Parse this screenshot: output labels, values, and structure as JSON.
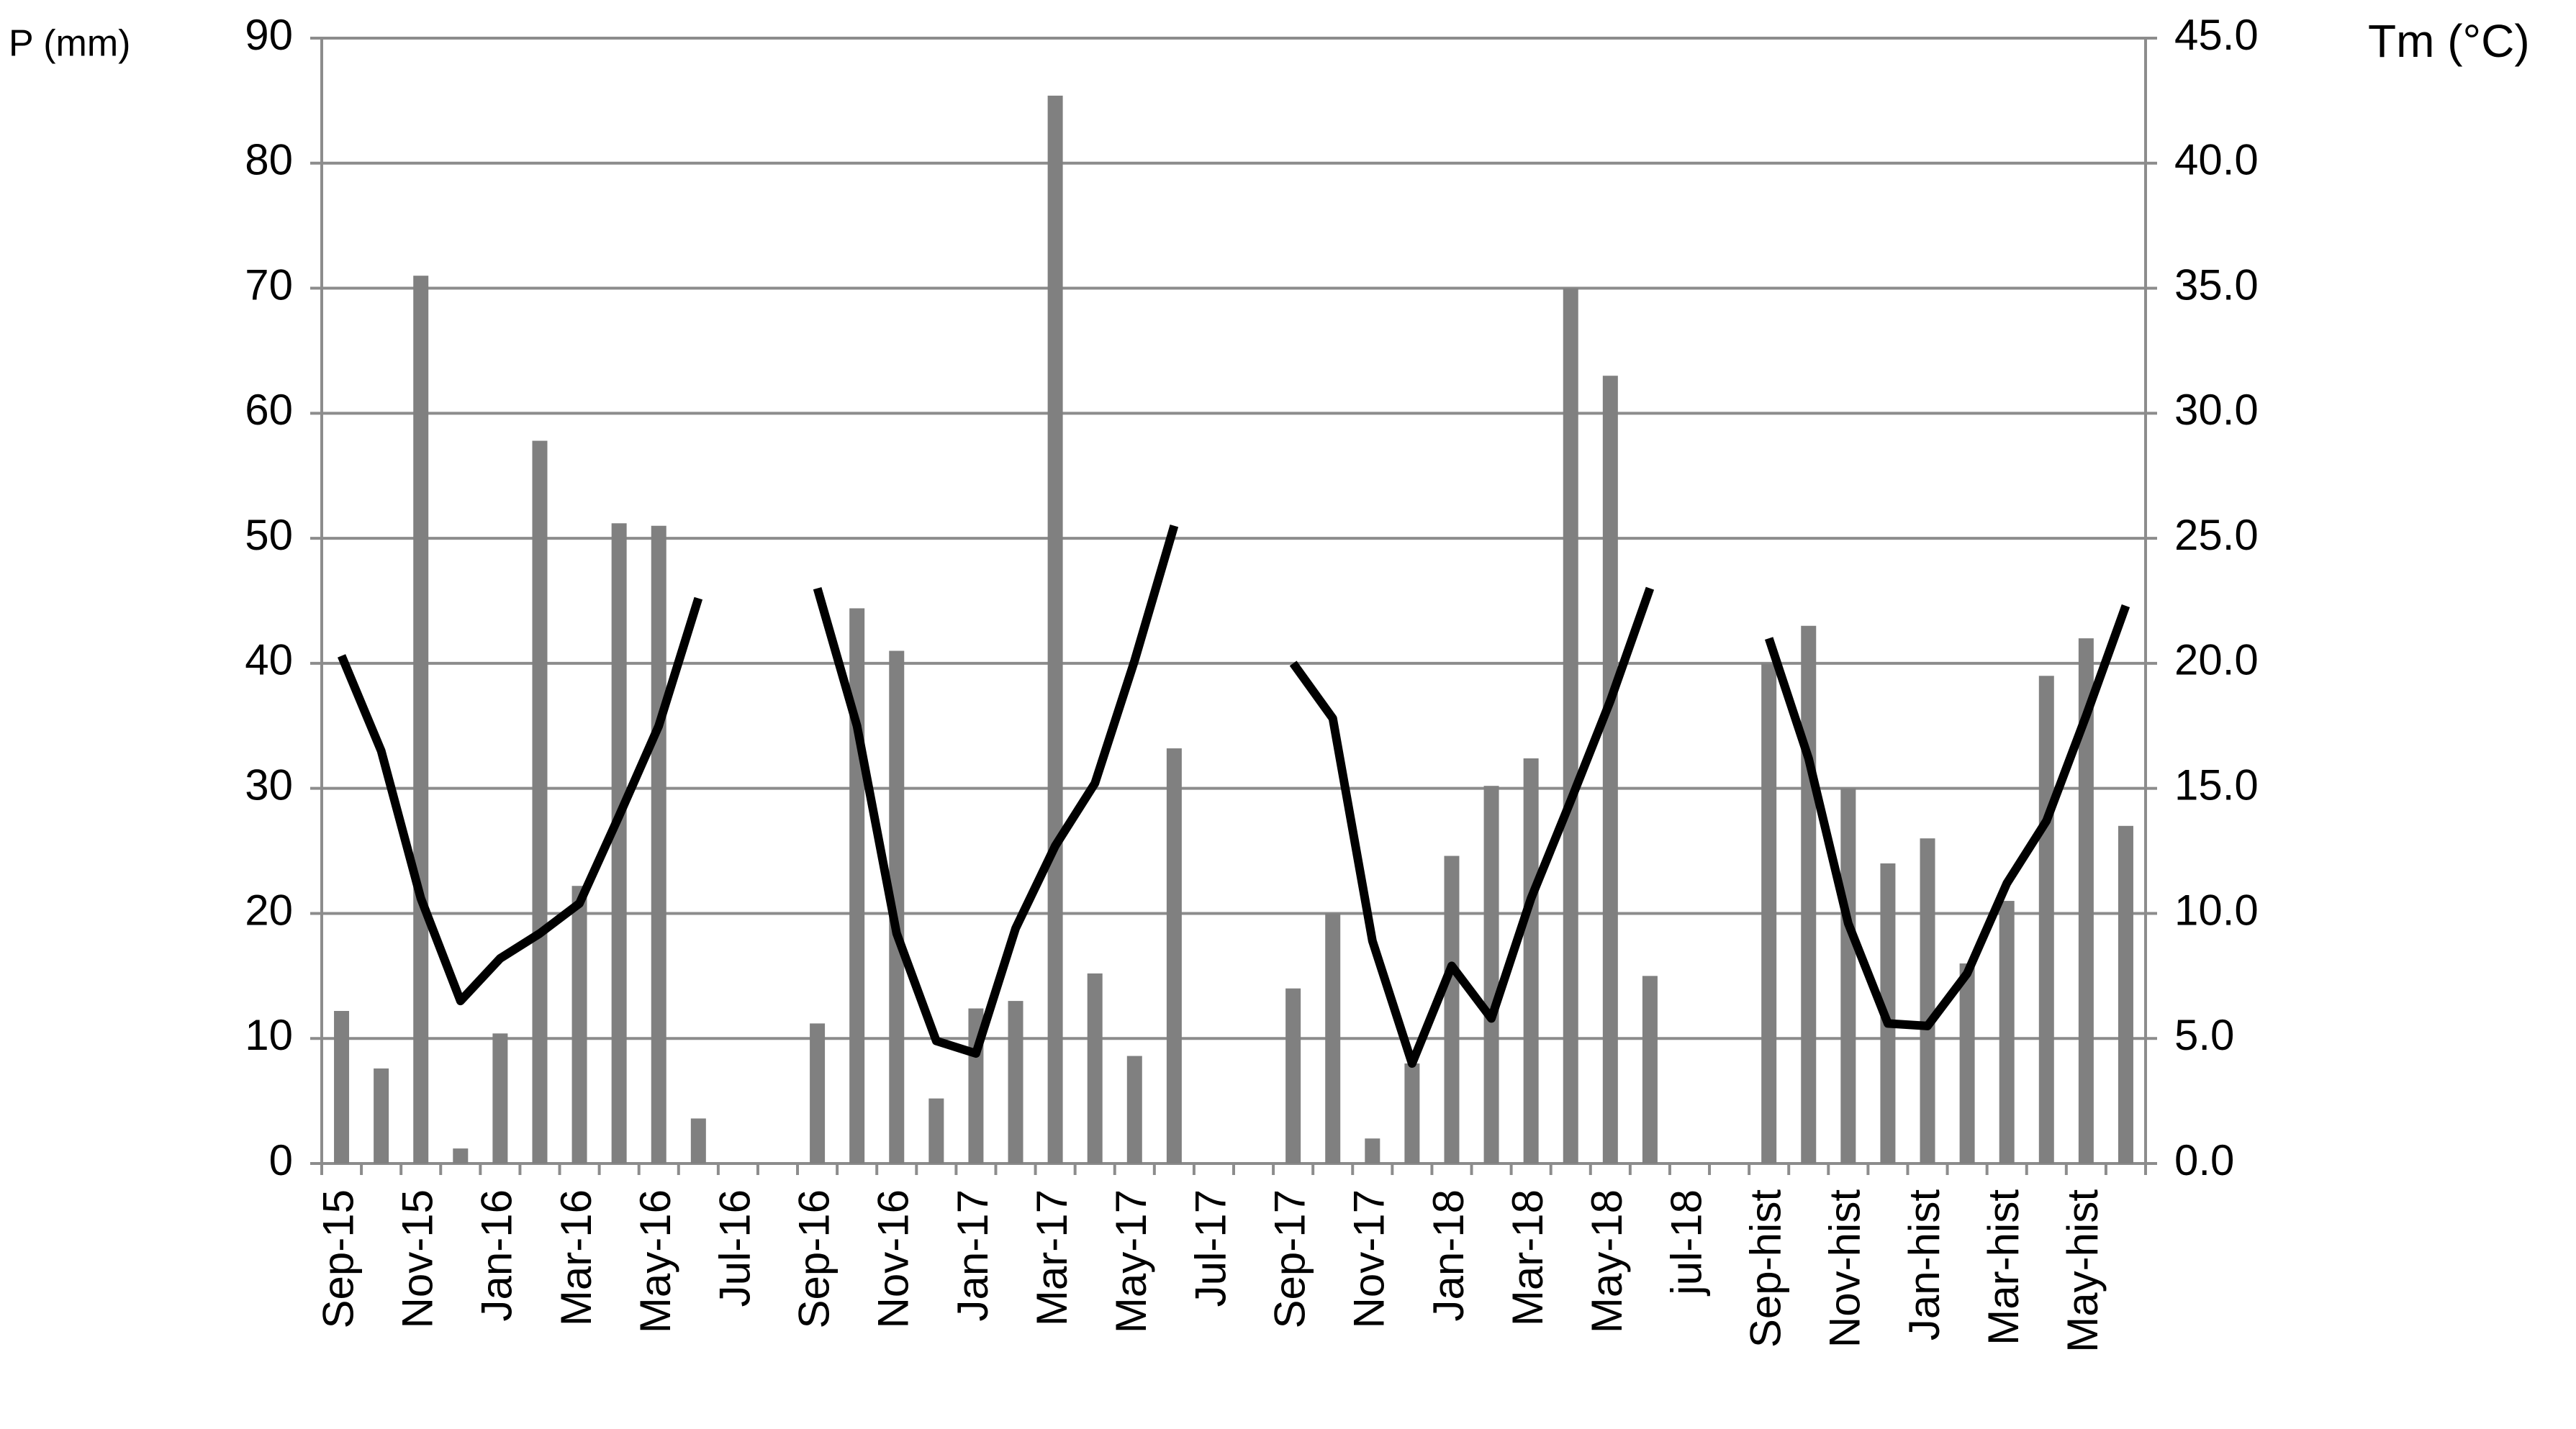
{
  "chart_data": {
    "type": "bar-line",
    "y_label": "P (mm)",
    "y2_label": "Tm (°C)",
    "categories": [
      "Sep-15",
      null,
      "Nov-15",
      null,
      "Jan-16",
      null,
      "Mar-16",
      null,
      "May-16",
      null,
      "Jul-16",
      null,
      "Sep-16",
      null,
      "Nov-16",
      null,
      "Jan-17",
      null,
      "Mar-17",
      null,
      "May-17",
      null,
      "Jul-17",
      null,
      "Sep-17",
      null,
      "Nov-17",
      null,
      "Jan-18",
      null,
      "Mar-18",
      null,
      "May-18",
      null,
      "jul-18",
      null,
      "Sep-hist",
      null,
      "Nov-hist",
      null,
      "Jan-hist",
      null,
      "Mar-hist",
      null,
      "May-hist",
      null
    ],
    "series": [
      {
        "name": "P",
        "type": "bar",
        "color": "#808080",
        "values": [
          12.2,
          7.6,
          71,
          1.2,
          10.4,
          57.8,
          22.2,
          51.2,
          51,
          3.6,
          null,
          null,
          11.2,
          44.4,
          41,
          5.2,
          12.4,
          13,
          85.4,
          15.2,
          8.6,
          33.2,
          null,
          null,
          14,
          20,
          2,
          8,
          24.6,
          30.2,
          32.4,
          70,
          63,
          15,
          null,
          null,
          40,
          43,
          30,
          24,
          26,
          16,
          21,
          39,
          42,
          27
        ]
      },
      {
        "name": "Tm",
        "type": "line",
        "axis": "y2",
        "color": "#000000",
        "values": [
          20.3,
          16.5,
          10.6,
          6.5,
          8.2,
          9.2,
          10.4,
          13.9,
          17.5,
          22.6,
          null,
          null,
          23.0,
          17.5,
          9.2,
          4.9,
          4.4,
          9.4,
          12.7,
          15.2,
          20.1,
          25.5,
          null,
          null,
          20.0,
          17.8,
          8.9,
          4.0,
          7.9,
          5.8,
          10.6,
          14.5,
          18.5,
          23.0,
          null,
          null,
          21.0,
          16.2,
          9.6,
          5.6,
          5.5,
          7.6,
          11.2,
          13.7,
          17.9,
          22.3
        ]
      }
    ],
    "ylim": [
      0,
      90
    ],
    "yticks": [
      0,
      10,
      20,
      30,
      40,
      50,
      60,
      70,
      80,
      90
    ],
    "y2lim": [
      0,
      45
    ],
    "y2ticks": [
      {
        "value": 0,
        "label": "0.0"
      },
      {
        "value": 5,
        "label": "5.0"
      },
      {
        "value": 10,
        "label": "10.0"
      },
      {
        "value": 15,
        "label": "15.0"
      },
      {
        "value": 20,
        "label": "20.0"
      },
      {
        "value": 25,
        "label": "25.0"
      },
      {
        "value": 30,
        "label": "30.0"
      },
      {
        "value": 35,
        "label": "35.0"
      },
      {
        "value": 40,
        "label": "40.0"
      },
      {
        "value": 45,
        "label": "45.0"
      }
    ],
    "grid": true
  }
}
